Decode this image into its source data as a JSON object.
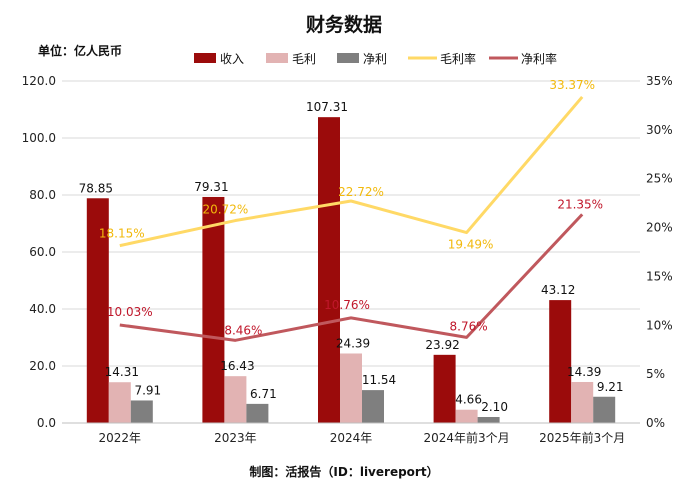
{
  "chart_data": {
    "type": "bar",
    "title": "财务数据",
    "unit_label": "单位：亿人民币",
    "footer": "制图：活报告（ID：livereport）",
    "categories": [
      "2022年",
      "2023年",
      "2024年",
      "2024年前3个月",
      "2025年前3个月"
    ],
    "ylim": [
      0,
      120
    ],
    "y_ticks": [
      "0.0",
      "20.0",
      "40.0",
      "60.0",
      "80.0",
      "100.0",
      "120.0"
    ],
    "y2lim": [
      0,
      35
    ],
    "y2_ticks": [
      "0%",
      "5%",
      "10%",
      "15%",
      "20%",
      "25%",
      "30%",
      "35%"
    ],
    "series": [
      {
        "name": "收入",
        "kind": "bar",
        "color": "#9B0B0B",
        "values": [
          78.85,
          79.31,
          107.31,
          23.92,
          43.12
        ],
        "labels": [
          "78.85",
          "79.31",
          "107.31",
          "23.92",
          "43.12"
        ]
      },
      {
        "name": "毛利",
        "kind": "bar",
        "color": "#E2B3B3",
        "values": [
          14.31,
          16.43,
          24.39,
          4.66,
          14.39
        ],
        "labels": [
          "14.31",
          "16.43",
          "24.39",
          "4.66",
          "14.39"
        ]
      },
      {
        "name": "净利",
        "kind": "bar",
        "color": "#7F7F7F",
        "values": [
          7.91,
          6.71,
          11.54,
          2.1,
          9.21
        ],
        "labels": [
          "7.91",
          "6.71",
          "11.54",
          "2.10",
          "9.21"
        ]
      },
      {
        "name": "毛利率",
        "kind": "line",
        "axis": "right",
        "color": "#FFD966",
        "label_color": "#F2B90C",
        "values": [
          18.15,
          20.72,
          22.72,
          19.49,
          33.37
        ],
        "labels": [
          "18.15%",
          "20.72%",
          "22.72%",
          "19.49%",
          "33.37%"
        ]
      },
      {
        "name": "净利率",
        "kind": "line",
        "axis": "right",
        "color": "#C0585D",
        "label_color": "#C0172B",
        "values": [
          10.03,
          8.46,
          10.76,
          8.76,
          21.35
        ],
        "labels": [
          "10.03%",
          "8.46%",
          "10.76%",
          "8.76%",
          "21.35%"
        ]
      }
    ]
  }
}
